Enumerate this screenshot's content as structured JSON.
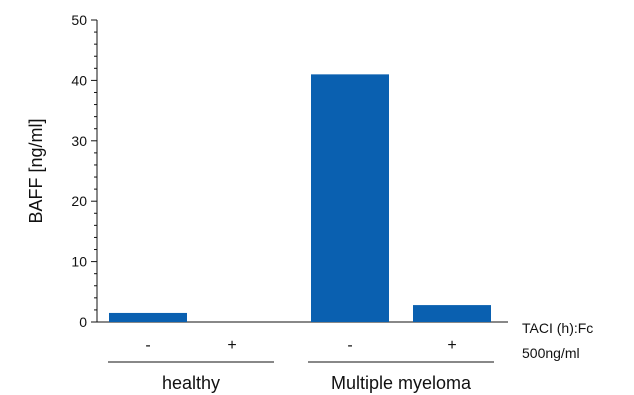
{
  "chart_data": {
    "type": "bar",
    "categories": [
      "-",
      "+",
      "-",
      "+"
    ],
    "groups": [
      {
        "label": "healthy",
        "categories": [
          0,
          1
        ]
      },
      {
        "label": "Multiple myeloma",
        "categories": [
          2,
          3
        ]
      }
    ],
    "values": [
      1.5,
      0,
      41,
      2.8
    ],
    "ylabel": "BAFF [ng/ml]",
    "ylim": [
      0,
      50
    ],
    "yticks": [
      0,
      10,
      20,
      30,
      40,
      50
    ],
    "grid": false,
    "bar_color": "#0a60b0",
    "treatment_label": [
      "TACI (h):Fc",
      "500ng/ml"
    ]
  }
}
